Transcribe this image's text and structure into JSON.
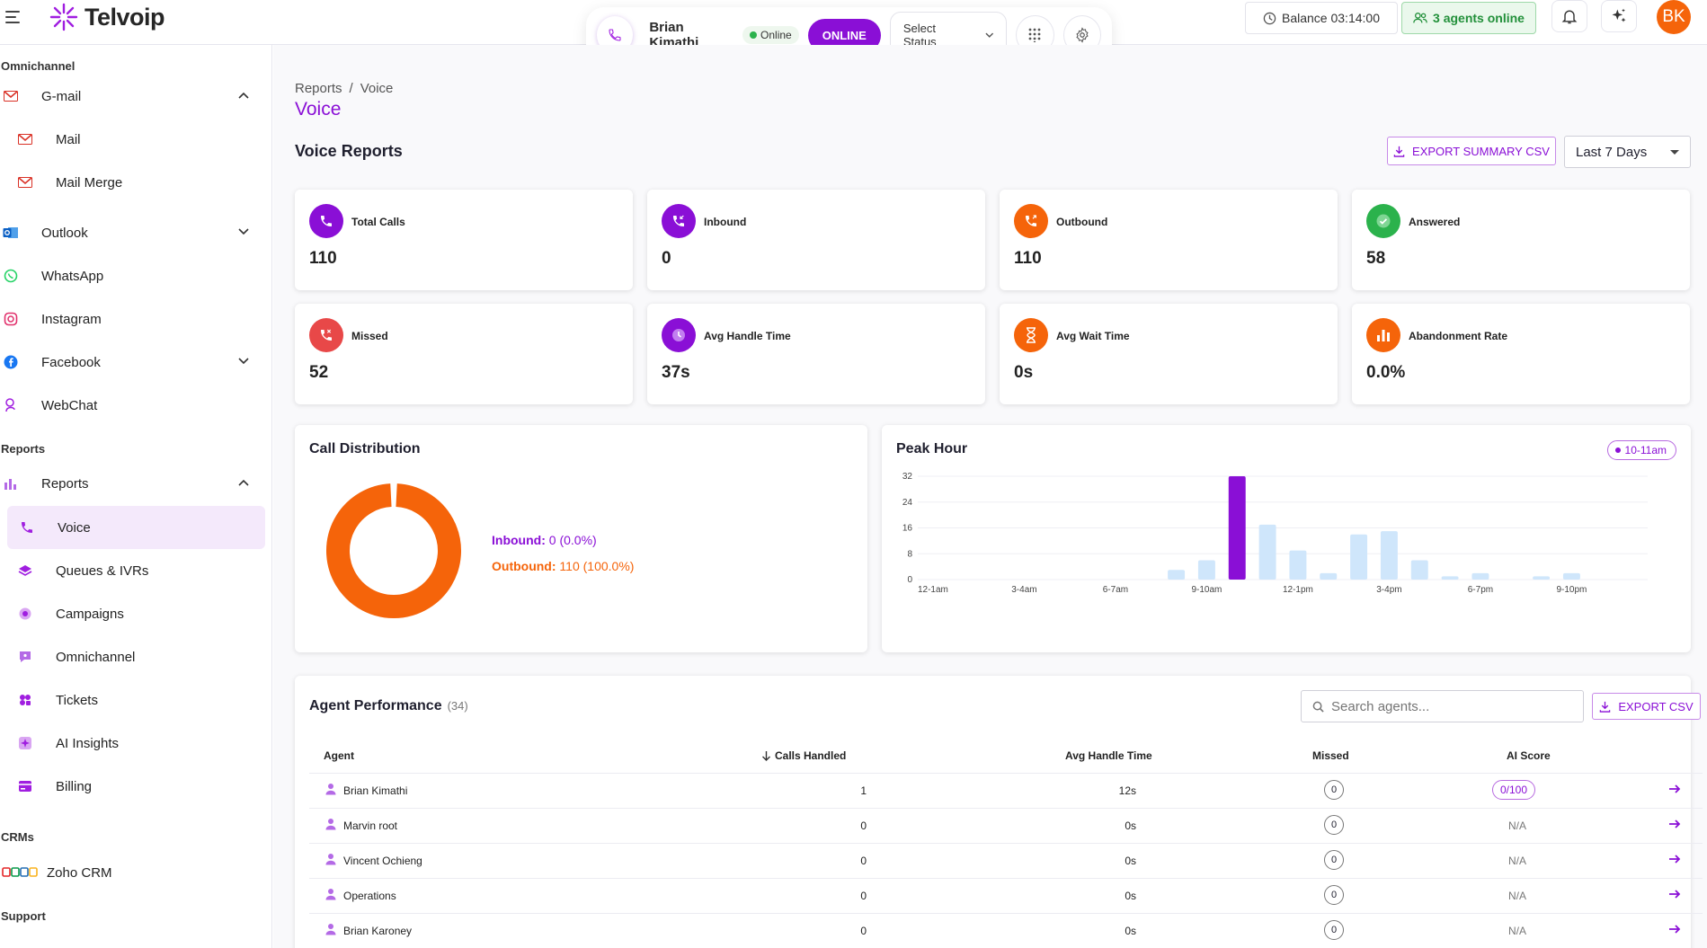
{
  "app": {
    "name": "Telvoip"
  },
  "topbar": {
    "agent_name": "Brian Kimathi",
    "presence": "Online",
    "status_button": "ONLINE",
    "status_select": "Select Status",
    "balance": "Balance 03:14:00",
    "agents_online": "3 agents online",
    "avatar_initials": "BK"
  },
  "sidebar": {
    "sections": {
      "omnichannel": "Omnichannel",
      "reports": "Reports",
      "crms": "CRMs",
      "support": "Support"
    },
    "items": {
      "gmail": "G-mail",
      "mail": "Mail",
      "mail_merge": "Mail Merge",
      "outlook": "Outlook",
      "whatsapp": "WhatsApp",
      "instagram": "Instagram",
      "facebook": "Facebook",
      "webchat": "WebChat",
      "reports": "Reports",
      "voice": "Voice",
      "queues": "Queues & IVRs",
      "campaigns": "Campaigns",
      "omnichannel": "Omnichannel",
      "tickets": "Tickets",
      "ai_insights": "AI Insights",
      "billing": "Billing",
      "zoho": "Zoho CRM"
    }
  },
  "breadcrumb": {
    "root": "Reports",
    "sep": "/",
    "current": "Voice"
  },
  "page_title": "Voice",
  "section_title": "Voice Reports",
  "export_summary": "EXPORT SUMMARY CSV",
  "date_range": "Last 7 Days",
  "stats": {
    "total_calls": {
      "label": "Total Calls",
      "value": "110"
    },
    "inbound": {
      "label": "Inbound",
      "value": "0"
    },
    "outbound": {
      "label": "Outbound",
      "value": "110"
    },
    "answered": {
      "label": "Answered",
      "value": "58"
    },
    "missed": {
      "label": "Missed",
      "value": "52"
    },
    "avg_handle": {
      "label": "Avg Handle Time",
      "value": "37s"
    },
    "avg_wait": {
      "label": "Avg Wait Time",
      "value": "0s"
    },
    "abandonment": {
      "label": "Abandonment Rate",
      "value": "0.0%"
    }
  },
  "call_distribution": {
    "title": "Call Distribution",
    "inbound_label": "Inbound:",
    "inbound_value": "0 (0.0%)",
    "outbound_label": "Outbound:",
    "outbound_value": "110 (100.0%)"
  },
  "peak_hour": {
    "title": "Peak Hour",
    "badge": "10-11am"
  },
  "colors": {
    "brand": "#8a0fd6",
    "outbound": "#f5640a",
    "bar_light": "#cfe6fb",
    "success": "#2bb24c",
    "missed": "#e84848"
  },
  "chart_data": [
    {
      "type": "pie",
      "title": "Call Distribution",
      "labels": [
        "Inbound",
        "Outbound"
      ],
      "values": [
        0,
        110
      ],
      "percent": [
        0.0,
        100.0
      ],
      "colors": [
        "#8a0fd6",
        "#f5640a"
      ]
    },
    {
      "type": "bar",
      "title": "Peak Hour",
      "categories": [
        "12-1am",
        "1-2am",
        "2-3am",
        "3-4am",
        "4-5am",
        "5-6am",
        "6-7am",
        "7-8am",
        "8-9am",
        "9-10am",
        "10-11am",
        "11-12pm",
        "12-1pm",
        "1-2pm",
        "2-3pm",
        "3-4pm",
        "4-5pm",
        "5-6pm",
        "6-7pm",
        "7-8pm",
        "8-9pm",
        "9-10pm",
        "10-11pm",
        "11-12am"
      ],
      "tick_labels": [
        "12-1am",
        "3-4am",
        "6-7am",
        "9-10am",
        "12-1pm",
        "3-4pm",
        "6-7pm",
        "9-10pm"
      ],
      "values": [
        0,
        0,
        0,
        0,
        0,
        0,
        0,
        0,
        3,
        6,
        32,
        17,
        9,
        2,
        14,
        15,
        6,
        1,
        2,
        0,
        1,
        2,
        0,
        0
      ],
      "highlight": "10-11am",
      "yticks": [
        0,
        8,
        16,
        24,
        32
      ],
      "ylim": [
        0,
        32
      ],
      "grid": true
    }
  ],
  "agent_performance": {
    "title": "Agent Performance",
    "count": "(34)",
    "search_placeholder": "Search agents...",
    "export": "EXPORT CSV",
    "columns": {
      "agent": "Agent",
      "calls": "Calls Handled",
      "aht": "Avg Handle Time",
      "missed": "Missed",
      "score": "AI Score"
    },
    "rows": [
      {
        "agent": "Brian Kimathi",
        "calls": "1",
        "aht": "12s",
        "missed": "0",
        "score": "0/100"
      },
      {
        "agent": "Marvin root",
        "calls": "0",
        "aht": "0s",
        "missed": "0",
        "score": "N/A"
      },
      {
        "agent": "Vincent Ochieng",
        "calls": "0",
        "aht": "0s",
        "missed": "0",
        "score": "N/A"
      },
      {
        "agent": "Operations",
        "calls": "0",
        "aht": "0s",
        "missed": "0",
        "score": "N/A"
      },
      {
        "agent": "Brian Karoney",
        "calls": "0",
        "aht": "0s",
        "missed": "0",
        "score": "N/A"
      }
    ]
  }
}
